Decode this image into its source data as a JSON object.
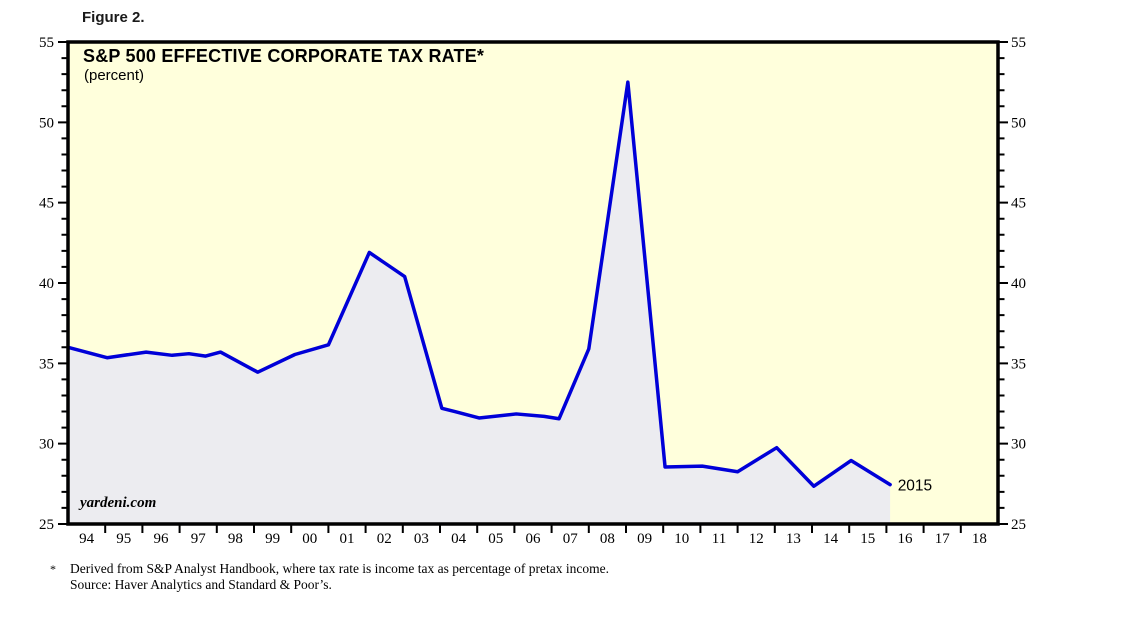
{
  "figure_label": "Figure 2.",
  "chart_data": {
    "type": "line",
    "title": "S&P 500 EFFECTIVE CORPORATE TAX RATE*",
    "subtitle": "(percent)",
    "watermark": "yardeni.com",
    "grid": "off",
    "legend": "none",
    "area_fill": true,
    "x_axis": {
      "range": [
        1994,
        2019
      ],
      "tick_labels": [
        "94",
        "95",
        "96",
        "97",
        "98",
        "99",
        "00",
        "01",
        "02",
        "03",
        "04",
        "05",
        "06",
        "07",
        "08",
        "09",
        "10",
        "11",
        "12",
        "13",
        "14",
        "15",
        "16",
        "17",
        "18"
      ]
    },
    "y_axis": {
      "range": [
        25,
        55
      ],
      "major_ticks": [
        25,
        30,
        35,
        40,
        45,
        50,
        55
      ],
      "minor_step": 1,
      "labels_both_sides": true
    },
    "series": [
      {
        "points": [
          [
            1994.0,
            36.0
          ],
          [
            1995.05,
            35.35
          ],
          [
            1996.1,
            35.7
          ],
          [
            1996.8,
            35.5
          ],
          [
            1997.25,
            35.6
          ],
          [
            1997.7,
            35.45
          ],
          [
            1998.1,
            35.7
          ],
          [
            1999.1,
            34.45
          ],
          [
            2000.1,
            35.55
          ],
          [
            2001.0,
            36.15
          ],
          [
            2002.1,
            41.9
          ],
          [
            2003.05,
            40.4
          ],
          [
            2004.05,
            32.2
          ],
          [
            2004.4,
            32.0
          ],
          [
            2005.05,
            31.6
          ],
          [
            2006.05,
            31.85
          ],
          [
            2006.8,
            31.7
          ],
          [
            2007.2,
            31.55
          ],
          [
            2008.0,
            35.9
          ],
          [
            2009.05,
            52.5
          ],
          [
            2010.05,
            28.55
          ],
          [
            2011.05,
            28.6
          ],
          [
            2012.0,
            28.25
          ],
          [
            2013.05,
            29.75
          ],
          [
            2014.05,
            27.35
          ],
          [
            2015.05,
            28.95
          ],
          [
            2016.1,
            27.45
          ]
        ]
      }
    ],
    "annotations": [
      {
        "text": "2015",
        "x": 2016.25,
        "y": 27.4
      }
    ]
  },
  "colors": {
    "plot_background": "#ffffdc",
    "area_fill": "#ececf0",
    "line": "#0000d8",
    "frame": "#000000",
    "annotation": "#0000d8"
  },
  "footnote": {
    "marker": "*",
    "line1": "Derived from S&P Analyst Handbook, where tax rate is income tax as percentage of pretax income.",
    "line2": "Source: Haver Analytics and Standard & Poor’s."
  }
}
